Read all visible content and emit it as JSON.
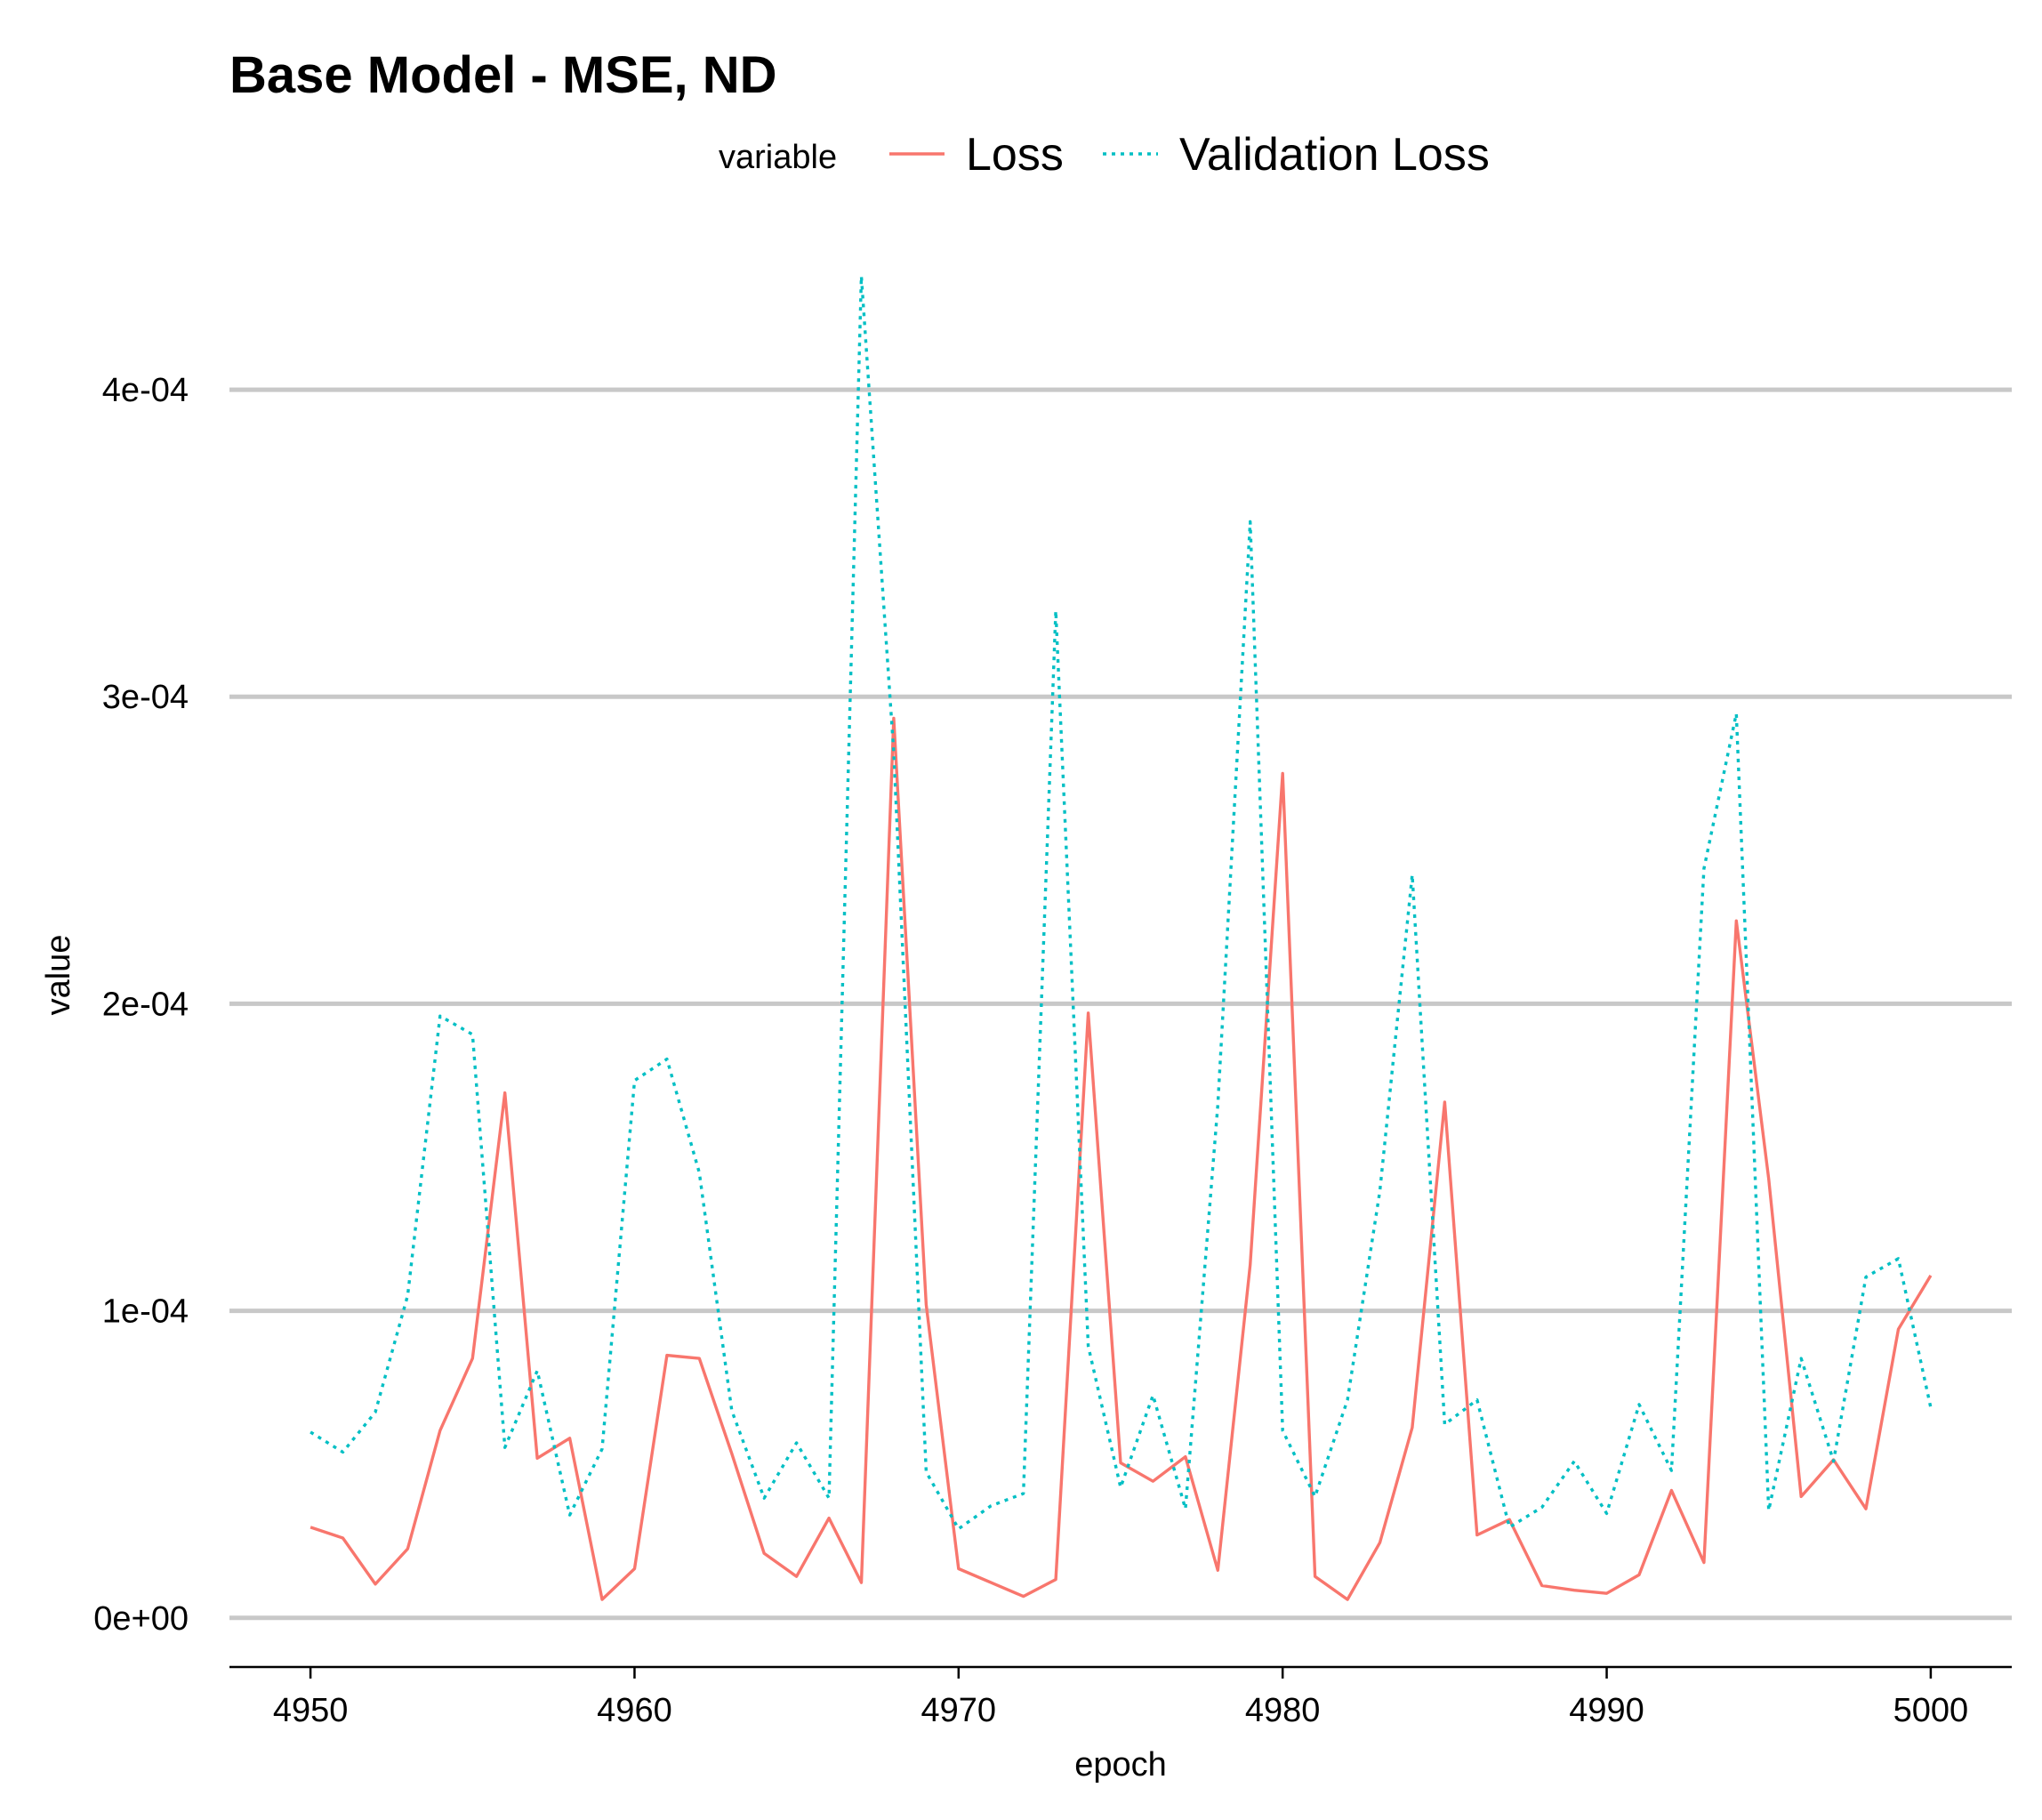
{
  "chart_data": {
    "type": "line",
    "title": "Base Model - MSE, ND",
    "xlabel": "epoch",
    "ylabel": "value",
    "xlim": [
      4947.5,
      5002.5
    ],
    "ylim": [
      -1.6e-05,
      0.00044
    ],
    "x_ticks": [
      4950,
      4960,
      4970,
      4980,
      4990,
      5000
    ],
    "x_tick_labels": [
      "4950",
      "4960",
      "4970",
      "4980",
      "4990",
      "5000"
    ],
    "y_ticks": [
      0,
      0.0001,
      0.0002,
      0.0003,
      0.0004
    ],
    "y_tick_labels": [
      "0e+00",
      "1e-04",
      "2e-04",
      "3e-04",
      "4e-04"
    ],
    "grid": "horizontal-major",
    "legend": {
      "title": "variable",
      "position": "top"
    },
    "x": [
      4950,
      4951,
      4952,
      4953,
      4954,
      4955,
      4956,
      4957,
      4958,
      4959,
      4960,
      4961,
      4962,
      4963,
      4964,
      4965,
      4966,
      4967,
      4968,
      4969,
      4970,
      4971,
      4972,
      4973,
      4974,
      4975,
      4976,
      4977,
      4978,
      4979,
      4980,
      4981,
      4982,
      4983,
      4984,
      4985,
      4986,
      4987,
      4988,
      4989,
      4990,
      4991,
      4992,
      4993,
      4994,
      4995,
      4996,
      4997,
      4998,
      4999,
      5000
    ],
    "series": [
      {
        "name": "Loss",
        "color": "#F8766D",
        "linestyle": "solid",
        "values": [
          2.95e-05,
          2.6e-05,
          1.1e-05,
          2.25e-05,
          6.1e-05,
          8.45e-05,
          0.000171,
          5.2e-05,
          5.85e-05,
          6e-06,
          1.6e-05,
          8.55e-05,
          8.45e-05,
          5.35e-05,
          2.1e-05,
          1.35e-05,
          3.25e-05,
          1.15e-05,
          0.000293,
          0.000102,
          1.6e-05,
          1.15e-05,
          7e-06,
          1.25e-05,
          0.000197,
          5.05e-05,
          4.45e-05,
          5.25e-05,
          1.55e-05,
          0.000115,
          0.000275,
          1.35e-05,
          6e-06,
          2.45e-05,
          6.2e-05,
          0.000168,
          2.7e-05,
          3.2e-05,
          1.05e-05,
          9e-06,
          8e-06,
          1.4e-05,
          4.15e-05,
          1.8e-05,
          0.000227,
          0.000143,
          3.95e-05,
          5.15e-05,
          3.55e-05,
          9.4e-05,
          0.0001115
        ]
      },
      {
        "name": "Validation Loss",
        "color": "#00BFC4",
        "linestyle": "dotted",
        "values": [
          6.05e-05,
          5.4e-05,
          6.7e-05,
          0.000105,
          0.000196,
          0.00019,
          5.55e-05,
          8.05e-05,
          3.35e-05,
          5.5e-05,
          0.000175,
          0.000182,
          0.000145,
          6.75e-05,
          3.9e-05,
          5.7e-05,
          3.9e-05,
          0.000437,
          0.000282,
          4.75e-05,
          2.9e-05,
          3.65e-05,
          4.05e-05,
          0.000328,
          8.85e-05,
          4.25e-05,
          7.25e-05,
          3.55e-05,
          0.000167,
          0.000357,
          6.1e-05,
          3.95e-05,
          7.1e-05,
          0.000139,
          0.000242,
          6.3e-05,
          7.1e-05,
          2.95e-05,
          3.6e-05,
          5.1e-05,
          3.4e-05,
          6.95e-05,
          4.8e-05,
          0.000244,
          0.0002945,
          3.5e-05,
          8.45e-05,
          5.1e-05,
          0.000111,
          0.000117,
          6.85e-05
        ]
      }
    ]
  }
}
